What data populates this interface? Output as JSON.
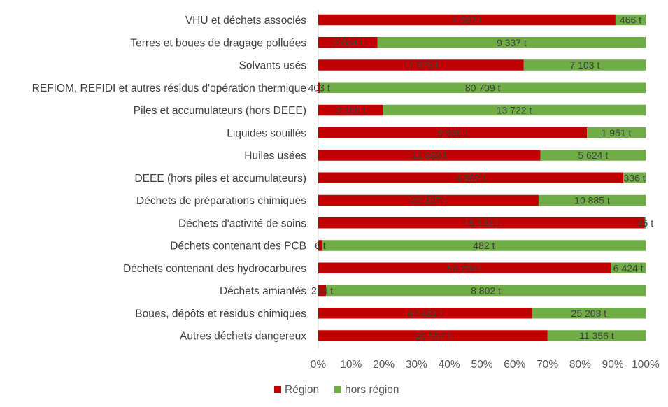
{
  "chart_data": {
    "type": "bar",
    "orientation": "horizontal",
    "stacked": "percent",
    "categories": [
      "VHU et déchets associés",
      "Terres et boues de dragage polluées",
      "Solvants usés",
      "REFIOM, REFIDI et autres résidus d'opération thermique",
      "Piles et accumulateurs (hors DEEE)",
      "Liquides souillés",
      "Huiles usées",
      "DEEE (hors piles et accumulateurs)",
      "Déchets de préparations chimiques",
      "Déchets d'activité de soins",
      "Déchets contenant des PCB",
      "Déchets contenant des hydrocarbures",
      "Déchets amiantés",
      "Boues, dépôts et résidus chimiques",
      "Autres déchets dangereux"
    ],
    "series": [
      {
        "name": "Région",
        "color": "#c00000",
        "values": [
          4597,
          2064,
          11978,
          403,
          3360,
          8930,
          11883,
          4597,
          22397,
          15134,
          6,
          54204,
          214,
          47482,
          26557
        ],
        "labels": [
          "4 597 t",
          "2 064 t",
          "11 978 t",
          "403 t",
          "3 360 t",
          "8 930 t",
          "11 883 t",
          "4 597 t",
          "22 397 t",
          "15 134 t",
          "6 t",
          "54 204 t",
          "214 t",
          "47 482 t",
          "26 557 t"
        ]
      },
      {
        "name": "hors région",
        "color": "#70ad47",
        "values": [
          466,
          9337,
          7103,
          80709,
          13722,
          1951,
          5624,
          336,
          10885,
          35,
          482,
          6424,
          8802,
          25208,
          11356
        ],
        "labels": [
          "466 t",
          "9 337 t",
          "7 103 t",
          "80 709 t",
          "13 722 t",
          "1 951 t",
          "5 624 t",
          "336 t",
          "10 885 t",
          "35 t",
          "482 t",
          "6 424 t",
          "8 802 t",
          "25 208 t",
          "11 356 t"
        ]
      }
    ],
    "xlim": [
      0,
      100
    ],
    "xticks": [
      "0%",
      "10%",
      "20%",
      "30%",
      "40%",
      "50%",
      "60%",
      "70%",
      "80%",
      "90%",
      "100%"
    ],
    "title": "",
    "xlabel": "",
    "ylabel": "",
    "grid": false,
    "legend": "bottom"
  }
}
